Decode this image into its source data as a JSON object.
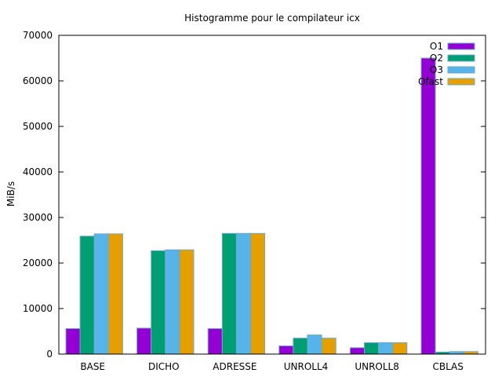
{
  "chart_data": {
    "type": "bar",
    "title": "Histogramme pour le compilateur icx",
    "xlabel": "",
    "ylabel": "MiB/s",
    "ylim": [
      0,
      70000
    ],
    "yticks": [
      0,
      10000,
      20000,
      30000,
      40000,
      50000,
      60000,
      70000
    ],
    "categories": [
      "BASE",
      "DICHO",
      "ADRESSE",
      "UNROLL4",
      "UNROLL8",
      "CBLAS"
    ],
    "legend_position": "top-right",
    "grid": false,
    "series": [
      {
        "name": "O1",
        "color": "#9400d3",
        "values": [
          5600,
          5700,
          5600,
          1800,
          1400,
          65000
        ]
      },
      {
        "name": "O2",
        "color": "#009e73",
        "values": [
          25900,
          22700,
          26500,
          3500,
          2500,
          450
        ]
      },
      {
        "name": "O3",
        "color": "#56b4e9",
        "values": [
          26400,
          22900,
          26500,
          4200,
          2500,
          550
        ]
      },
      {
        "name": "Ofast",
        "color": "#e69f00",
        "values": [
          26400,
          22900,
          26500,
          3500,
          2500,
          550
        ]
      }
    ]
  }
}
